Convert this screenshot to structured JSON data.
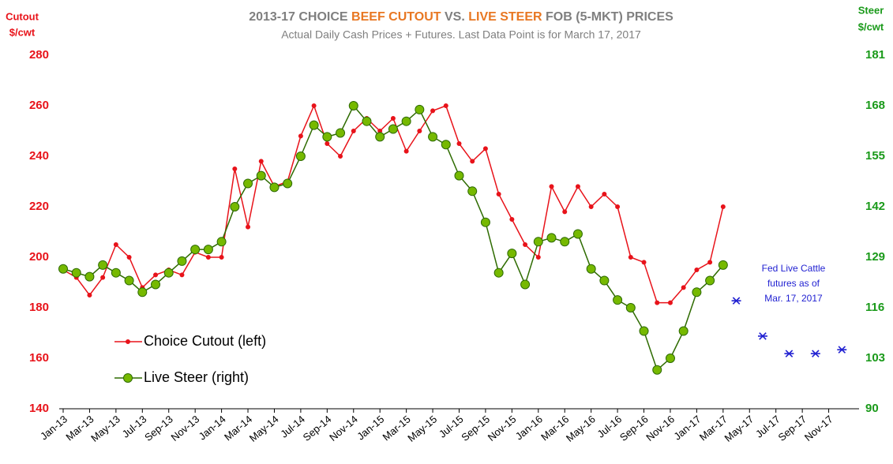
{
  "chart_data": {
    "type": "line",
    "title_parts": [
      "2013-17 CHOICE ",
      "BEEF CUTOUT",
      " VS. ",
      "LIVE STEER",
      " FOB (5-MKT) PRICES"
    ],
    "subtitle": "Actual Daily Cash Prices + Futures.  Last Data Point is for March 17, 2017",
    "y_label": [
      "Cutout",
      "$/cwt"
    ],
    "y2_label": [
      "Steer",
      "$/cwt"
    ],
    "annotation": [
      "Fed Live Cattle",
      "futures as of",
      "Mar. 17, 2017"
    ],
    "categories": [
      "Jan-13",
      null,
      "Mar-13",
      null,
      "May-13",
      null,
      "Jul-13",
      null,
      "Sep-13",
      null,
      "Nov-13",
      null,
      "Jan-14",
      null,
      "Mar-14",
      null,
      "May-14",
      null,
      "Jul-14",
      null,
      "Sep-14",
      null,
      "Nov-14",
      null,
      "Jan-15",
      null,
      "Mar-15",
      null,
      "May-15",
      null,
      "Jul-15",
      null,
      "Sep-15",
      null,
      "Nov-15",
      null,
      "Jan-16",
      null,
      "Mar-16",
      null,
      "May-16",
      null,
      "Jul-16",
      null,
      "Sep-16",
      null,
      "Nov-16",
      null,
      "Jan-17",
      null,
      "Mar-17",
      null,
      "May-17",
      null,
      "Jul-17",
      null,
      "Sep-17",
      null,
      "Nov-17",
      null
    ],
    "series": [
      {
        "name": "Choice Cutout (left)",
        "color": "#e8131a",
        "axis": "y",
        "values": [
          195,
          192,
          185,
          192,
          205,
          200,
          188,
          193,
          195,
          193,
          202,
          200,
          200,
          235,
          212,
          238,
          228,
          230,
          248,
          260,
          245,
          240,
          250,
          255,
          250,
          255,
          242,
          250,
          258,
          260,
          245,
          238,
          243,
          225,
          215,
          205,
          200,
          228,
          218,
          228,
          220,
          225,
          220,
          200,
          198,
          182,
          182,
          188,
          195,
          198,
          220,
          null,
          null,
          null,
          null,
          null,
          null,
          null,
          null,
          null
        ]
      },
      {
        "name": "Live Steer (right)",
        "color": "#76b900",
        "axis": "y2",
        "values": [
          126,
          125,
          124,
          127,
          125,
          123,
          120,
          122,
          125,
          128,
          131,
          131,
          133,
          142,
          148,
          150,
          147,
          148,
          155,
          163,
          160,
          161,
          168,
          164,
          160,
          162,
          164,
          167,
          160,
          158,
          150,
          146,
          138,
          125,
          130,
          122,
          133,
          134,
          133,
          135,
          126,
          123,
          118,
          116,
          110,
          100,
          103,
          110,
          120,
          123,
          127,
          null,
          null,
          null,
          null,
          null,
          null,
          null,
          null,
          null
        ]
      },
      {
        "color": "#1f1fd1",
        "axis": "y2",
        "marker": "asterisk",
        "values": [
          null,
          null,
          null,
          null,
          null,
          null,
          null,
          null,
          null,
          null,
          null,
          null,
          null,
          null,
          null,
          null,
          null,
          null,
          null,
          null,
          null,
          null,
          null,
          null,
          null,
          null,
          null,
          null,
          null,
          null,
          null,
          null,
          null,
          null,
          null,
          null,
          null,
          null,
          null,
          null,
          null,
          null,
          null,
          null,
          null,
          null,
          null,
          null,
          null,
          null,
          null,
          117.8,
          null,
          108.7,
          null,
          104.2,
          null,
          104.2,
          null,
          105.2
        ]
      }
    ],
    "ylim": [
      140,
      280
    ],
    "yticks": [
      140,
      160,
      180,
      200,
      220,
      240,
      260,
      280
    ],
    "y2lim": [
      90,
      181
    ],
    "y2ticks": [
      90,
      103,
      116,
      129,
      142,
      155,
      168,
      181
    ],
    "y_color": "#e8131a",
    "y2_color": "#1a9a1a",
    "title_color": "#7f7f7f",
    "highlight_color": "#e87722",
    "grid": false
  }
}
